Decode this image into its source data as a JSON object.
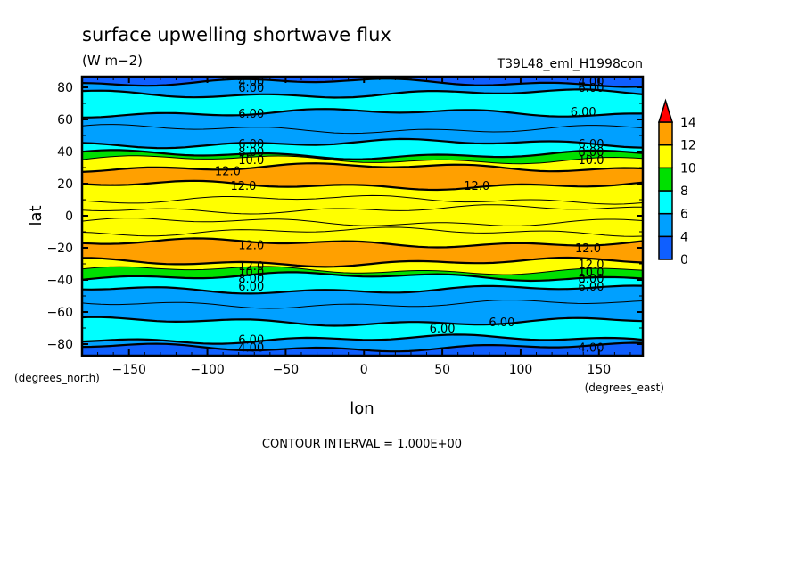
{
  "chart_data": {
    "type": "heatmap",
    "subtype": "filled-contour",
    "title": "surface upwelling shortwave flux",
    "units": "(W m−2)",
    "run_label": "T39L48_eml_H1998con",
    "xlabel": "lon",
    "ylabel": "lat",
    "x_units": "(degrees_east)",
    "y_units": "(degrees_north)",
    "xlim": [
      -180,
      178
    ],
    "ylim": [
      -87,
      87
    ],
    "x_ticks": [
      -150,
      -100,
      -50,
      0,
      50,
      100,
      150
    ],
    "x_tick_labels": [
      "−150",
      "−100",
      "−50",
      "0",
      "50",
      "100",
      "150"
    ],
    "y_ticks": [
      80,
      60,
      40,
      20,
      0,
      -20,
      -40,
      -60,
      -80
    ],
    "y_tick_labels": [
      "80",
      "60",
      "40",
      "20",
      "0",
      "−20",
      "−40",
      "−60",
      "−80"
    ],
    "footer": "CONTOUR INTERVAL = 1.000E+00",
    "colorbar": {
      "levels": [
        0,
        4,
        6,
        8,
        10,
        12,
        14
      ],
      "labels": [
        "0",
        "4",
        "6",
        "8",
        "10",
        "12",
        "14"
      ],
      "colors": [
        "#0f5fff",
        "#00a0ff",
        "#00ffff",
        "#00e000",
        "#ffff00",
        "#ffa000",
        "#ff0000"
      ],
      "extend": "max"
    },
    "bands_by_lat": [
      {
        "from": 87,
        "to": 83,
        "class": "0-4"
      },
      {
        "from": 83,
        "to": 76,
        "class": "4-6"
      },
      {
        "from": 76,
        "to": 64,
        "class": "6-8"
      },
      {
        "from": 64,
        "to": 45,
        "class": "4-6"
      },
      {
        "from": 45,
        "to": 38,
        "class": "6-8"
      },
      {
        "from": 38,
        "to": 35,
        "class": "8-10"
      },
      {
        "from": 35,
        "to": 30,
        "class": "10-12"
      },
      {
        "from": 30,
        "to": 19,
        "class": "12-14"
      },
      {
        "from": 19,
        "to": -17,
        "class": "10-12"
      },
      {
        "from": -17,
        "to": -29,
        "class": "12-14"
      },
      {
        "from": -29,
        "to": -34,
        "class": "10-12"
      },
      {
        "from": -34,
        "to": -38,
        "class": "8-10"
      },
      {
        "from": -38,
        "to": -46,
        "class": "6-8"
      },
      {
        "from": -46,
        "to": -66,
        "class": "4-6"
      },
      {
        "from": -66,
        "to": -77,
        "class": "6-8"
      },
      {
        "from": -77,
        "to": -82,
        "class": "4-6"
      },
      {
        "from": -82,
        "to": -87,
        "class": "0-4"
      }
    ],
    "contour_labels": [
      {
        "text": "4.00",
        "lon": -72,
        "lat": 84
      },
      {
        "text": "6.00",
        "lon": -72,
        "lat": 80
      },
      {
        "text": "4.00",
        "lon": 145,
        "lat": 84
      },
      {
        "text": "6.00",
        "lon": 145,
        "lat": 80
      },
      {
        "text": "6.00",
        "lon": -72,
        "lat": 64
      },
      {
        "text": "6.00",
        "lon": 140,
        "lat": 65
      },
      {
        "text": "6.00",
        "lon": -72,
        "lat": 45
      },
      {
        "text": "8.00",
        "lon": -72,
        "lat": 40
      },
      {
        "text": "10.0",
        "lon": -72,
        "lat": 35
      },
      {
        "text": "6.00",
        "lon": 145,
        "lat": 45
      },
      {
        "text": "8.00",
        "lon": 145,
        "lat": 40
      },
      {
        "text": "10.0",
        "lon": 145,
        "lat": 35
      },
      {
        "text": "12.0",
        "lon": -87,
        "lat": 28
      },
      {
        "text": "12.0",
        "lon": -77,
        "lat": 19
      },
      {
        "text": "12.0",
        "lon": 72,
        "lat": 19
      },
      {
        "text": "12.0",
        "lon": -72,
        "lat": -18
      },
      {
        "text": "12.0",
        "lon": 143,
        "lat": -20
      },
      {
        "text": "12.0",
        "lon": -72,
        "lat": -31
      },
      {
        "text": "10.0",
        "lon": -72,
        "lat": -35
      },
      {
        "text": "8.00",
        "lon": -72,
        "lat": -39
      },
      {
        "text": "6.00",
        "lon": -72,
        "lat": -44
      },
      {
        "text": "12.0",
        "lon": 145,
        "lat": -30
      },
      {
        "text": "10.0",
        "lon": 145,
        "lat": -35
      },
      {
        "text": "8.00",
        "lon": 145,
        "lat": -39
      },
      {
        "text": "6.00",
        "lon": 145,
        "lat": -44
      },
      {
        "text": "6.00",
        "lon": 50,
        "lat": -70
      },
      {
        "text": "6.00",
        "lon": 88,
        "lat": -66
      },
      {
        "text": "6.00",
        "lon": -72,
        "lat": -77
      },
      {
        "text": "4.00",
        "lon": -72,
        "lat": -82
      },
      {
        "text": "4.00",
        "lon": 145,
        "lat": -82
      }
    ]
  }
}
